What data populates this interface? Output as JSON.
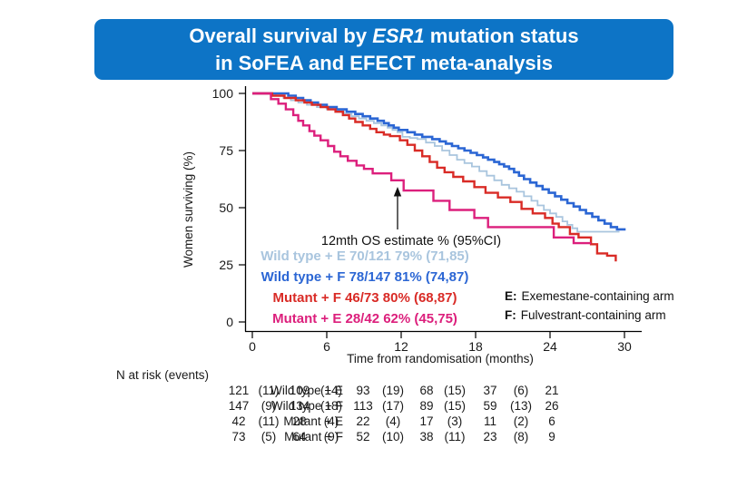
{
  "title": {
    "line1_pre": "Overall survival by ",
    "line1_italic": "ESR1",
    "line1_post": " mutation status",
    "line2": "in SoFEA and EFECT meta-analysis"
  },
  "colors": {
    "banner_blue": "#0d74c6",
    "wild_type_e": "#a9c5de",
    "wild_type_f": "#2b66d4",
    "mutant_f": "#d92b26",
    "mutant_e": "#dc1f7c",
    "axis_black": "#000000"
  },
  "chart_data": {
    "type": "line",
    "subtype": "kaplan-meier-step",
    "title": "",
    "xlabel": "Time from randomisation (months)",
    "ylabel": "Women surviving (%)",
    "xlim": [
      0,
      30
    ],
    "ylim": [
      0,
      100
    ],
    "x_ticks": [
      0,
      6,
      12,
      18,
      24,
      30
    ],
    "y_ticks": [
      0,
      25,
      50,
      75,
      100
    ],
    "grid": false,
    "annotation": {
      "text": "12mth OS estimate % (95%CI)"
    },
    "series": [
      {
        "name": "Wild type + E",
        "label": "Wild type + E 70/121 79% (71,85)",
        "events_n": "70/121",
        "estimate_12mo_pct": 79,
        "ci_95": "(71,85)",
        "color": "#a9c5de",
        "points": [
          [
            0,
            100
          ],
          [
            1.9,
            99
          ],
          [
            2.5,
            98
          ],
          [
            3.1,
            97
          ],
          [
            3.7,
            96
          ],
          [
            4.4,
            95
          ],
          [
            5.2,
            94
          ],
          [
            6.0,
            93
          ],
          [
            6.7,
            92
          ],
          [
            7.4,
            91
          ],
          [
            8.0,
            90
          ],
          [
            8.6,
            89
          ],
          [
            9.2,
            88
          ],
          [
            9.8,
            87
          ],
          [
            10.4,
            86
          ],
          [
            10.9,
            85
          ],
          [
            11.3,
            84
          ],
          [
            11.7,
            83
          ],
          [
            12.1,
            81
          ],
          [
            12.7,
            80.5
          ],
          [
            13.3,
            80
          ],
          [
            14.0,
            78.5
          ],
          [
            14.7,
            77
          ],
          [
            15.3,
            75
          ],
          [
            15.9,
            73
          ],
          [
            16.5,
            71
          ],
          [
            17.1,
            69.5
          ],
          [
            17.7,
            68
          ],
          [
            18.3,
            66
          ],
          [
            18.9,
            64
          ],
          [
            19.5,
            62
          ],
          [
            20.1,
            60
          ],
          [
            20.7,
            58.5
          ],
          [
            21.3,
            57
          ],
          [
            21.9,
            55
          ],
          [
            22.5,
            53
          ],
          [
            23.0,
            51
          ],
          [
            23.5,
            49
          ],
          [
            24.0,
            47.5
          ],
          [
            24.5,
            46
          ],
          [
            25.0,
            44
          ],
          [
            25.4,
            42.5
          ],
          [
            25.8,
            41
          ],
          [
            26.2,
            39.5
          ],
          [
            29.6,
            39.5
          ]
        ]
      },
      {
        "name": "Wild type + F",
        "label": "Wild type + F 78/147 81% (74,87)",
        "events_n": "78/147",
        "estimate_12mo_pct": 81,
        "ci_95": "(74,87)",
        "color": "#2b66d4",
        "points": [
          [
            0,
            100
          ],
          [
            2.9,
            99
          ],
          [
            3.5,
            98
          ],
          [
            4.1,
            97
          ],
          [
            4.7,
            96
          ],
          [
            5.3,
            95
          ],
          [
            6.0,
            94
          ],
          [
            6.8,
            93
          ],
          [
            7.6,
            92
          ],
          [
            8.3,
            91
          ],
          [
            8.9,
            90
          ],
          [
            9.5,
            89
          ],
          [
            10.1,
            88
          ],
          [
            10.6,
            87
          ],
          [
            11.0,
            86
          ],
          [
            11.4,
            85
          ],
          [
            11.8,
            84
          ],
          [
            12.5,
            83
          ],
          [
            13.1,
            82
          ],
          [
            13.7,
            81
          ],
          [
            14.5,
            80
          ],
          [
            15.1,
            79
          ],
          [
            15.6,
            78
          ],
          [
            16.1,
            77
          ],
          [
            16.6,
            76
          ],
          [
            17.1,
            75
          ],
          [
            17.6,
            74
          ],
          [
            18.1,
            73
          ],
          [
            18.6,
            72
          ],
          [
            19.0,
            71
          ],
          [
            19.5,
            70
          ],
          [
            19.9,
            69
          ],
          [
            20.3,
            68
          ],
          [
            20.7,
            67
          ],
          [
            21.1,
            65.5
          ],
          [
            21.5,
            64
          ],
          [
            21.9,
            62.5
          ],
          [
            22.4,
            61
          ],
          [
            22.9,
            59.5
          ],
          [
            23.4,
            58
          ],
          [
            23.9,
            56.5
          ],
          [
            24.4,
            55
          ],
          [
            24.9,
            53.5
          ],
          [
            25.4,
            52
          ],
          [
            25.9,
            50.5
          ],
          [
            26.4,
            49
          ],
          [
            26.9,
            47.5
          ],
          [
            27.4,
            46
          ],
          [
            27.9,
            44.5
          ],
          [
            28.4,
            43
          ],
          [
            28.9,
            41.5
          ],
          [
            29.4,
            40.5
          ],
          [
            30,
            40
          ]
        ]
      },
      {
        "name": "Mutant + F",
        "label": "Mutant + F 46/73 80% (68,87)",
        "events_n": "46/73",
        "estimate_12mo_pct": 80,
        "ci_95": "(68,87)",
        "color": "#d92b26",
        "points": [
          [
            0,
            100
          ],
          [
            1.6,
            99
          ],
          [
            2.6,
            98
          ],
          [
            3.5,
            97
          ],
          [
            4.2,
            96
          ],
          [
            4.8,
            95
          ],
          [
            5.5,
            94
          ],
          [
            6.1,
            93
          ],
          [
            6.7,
            92
          ],
          [
            7.3,
            90.5
          ],
          [
            7.8,
            89
          ],
          [
            8.3,
            87.5
          ],
          [
            8.9,
            86
          ],
          [
            9.5,
            84.5
          ],
          [
            10.0,
            83
          ],
          [
            10.6,
            82
          ],
          [
            11.1,
            81.3
          ],
          [
            11.9,
            79.5
          ],
          [
            12.5,
            77.5
          ],
          [
            13.1,
            75
          ],
          [
            13.7,
            72.5
          ],
          [
            14.3,
            70
          ],
          [
            14.9,
            67.5
          ],
          [
            15.5,
            65.5
          ],
          [
            16.2,
            63.5
          ],
          [
            17.0,
            61.5
          ],
          [
            17.9,
            59
          ],
          [
            18.8,
            56.5
          ],
          [
            19.8,
            54.5
          ],
          [
            20.8,
            52.5
          ],
          [
            21.7,
            49.5
          ],
          [
            22.6,
            47.5
          ],
          [
            23.6,
            45.5
          ],
          [
            24.2,
            43
          ],
          [
            24.7,
            41.5
          ],
          [
            25.6,
            38.5
          ],
          [
            26.3,
            37
          ],
          [
            27.3,
            34
          ],
          [
            27.8,
            30
          ],
          [
            28.6,
            29
          ],
          [
            29.3,
            26.5
          ]
        ]
      },
      {
        "name": "Mutant + E",
        "label": "Mutant + E 28/42 62% (45,75)",
        "events_n": "28/42",
        "estimate_12mo_pct": 62,
        "ci_95": "(45,75)",
        "color": "#dc1f7c",
        "points": [
          [
            0,
            100
          ],
          [
            1.5,
            97.5
          ],
          [
            2.1,
            95.5
          ],
          [
            2.7,
            93
          ],
          [
            3.3,
            90.5
          ],
          [
            3.7,
            88
          ],
          [
            4.1,
            86
          ],
          [
            4.6,
            83.5
          ],
          [
            5.0,
            81.5
          ],
          [
            5.5,
            79.5
          ],
          [
            6.1,
            77
          ],
          [
            6.6,
            74.5
          ],
          [
            7.1,
            72.5
          ],
          [
            7.7,
            70.5
          ],
          [
            8.4,
            68.5
          ],
          [
            9.0,
            67
          ],
          [
            9.7,
            65
          ],
          [
            11.2,
            62
          ],
          [
            12.2,
            57.5
          ],
          [
            14.6,
            53
          ],
          [
            15.9,
            49
          ],
          [
            17.9,
            45.5
          ],
          [
            19.0,
            41.5
          ],
          [
            24.3,
            37
          ],
          [
            25.9,
            34.5
          ],
          [
            27.3,
            34.5
          ]
        ]
      }
    ],
    "arm_definitions": [
      {
        "key": "E:",
        "text": "Exemestane-containing arm"
      },
      {
        "key": "F:",
        "text": "Fulvestrant-containing arm"
      }
    ]
  },
  "risk_table": {
    "header": "N at risk (events)",
    "rows": [
      {
        "label": "Wild type + E",
        "values": [
          "121",
          "(11)",
          "109",
          "(14)",
          "93",
          "(19)",
          "68",
          "(15)",
          "37",
          "(6)",
          "21"
        ]
      },
      {
        "label": "Wild type + F",
        "values": [
          "147",
          "(9)",
          "134",
          "(18)",
          "113",
          "(17)",
          "89",
          "(15)",
          "59",
          "(13)",
          "26"
        ]
      },
      {
        "label": "Mutant + E",
        "values": [
          "42",
          "(11)",
          "28",
          "(4)",
          "22",
          "(4)",
          "17",
          "(3)",
          "11",
          "(2)",
          "6"
        ]
      },
      {
        "label": "Mutant + F",
        "values": [
          "73",
          "(5)",
          "64",
          "(9)",
          "52",
          "(10)",
          "38",
          "(11)",
          "23",
          "(8)",
          "9"
        ]
      }
    ]
  }
}
